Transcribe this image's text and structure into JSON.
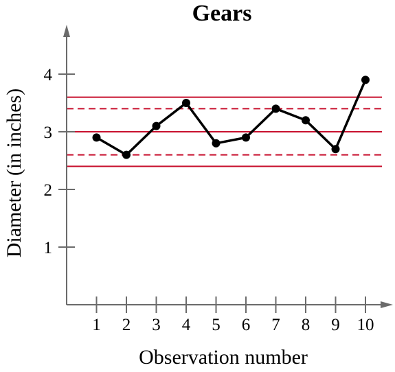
{
  "chart_data": {
    "type": "line",
    "title": "Gears",
    "xlabel": "Observation number",
    "ylabel": "Diameter (in inches)",
    "x": [
      1,
      2,
      3,
      4,
      5,
      6,
      7,
      8,
      9,
      10
    ],
    "x_tick_labels": [
      "1",
      "2",
      "3",
      "4",
      "5",
      "6",
      "7",
      "8",
      "9",
      "10"
    ],
    "y_tick_labels": [
      "1",
      "2",
      "3",
      "4"
    ],
    "y_ticks": [
      1,
      2,
      3,
      4
    ],
    "series": [
      {
        "values": [
          2.9,
          2.6,
          3.1,
          3.5,
          2.8,
          2.9,
          3.4,
          3.2,
          2.7,
          3.9
        ]
      }
    ],
    "reference_lines": [
      {
        "y": 3.6,
        "style": "solid"
      },
      {
        "y": 3.4,
        "style": "dashed"
      },
      {
        "y": 3.0,
        "style": "solid"
      },
      {
        "y": 2.6,
        "style": "dashed"
      },
      {
        "y": 2.4,
        "style": "solid"
      }
    ],
    "xlim": [
      0,
      10.5
    ],
    "ylim": [
      0,
      4.8
    ],
    "grid": false,
    "colors": {
      "series": "#000000",
      "reference": "#c8102e",
      "axis": "#6b6b6b"
    }
  }
}
